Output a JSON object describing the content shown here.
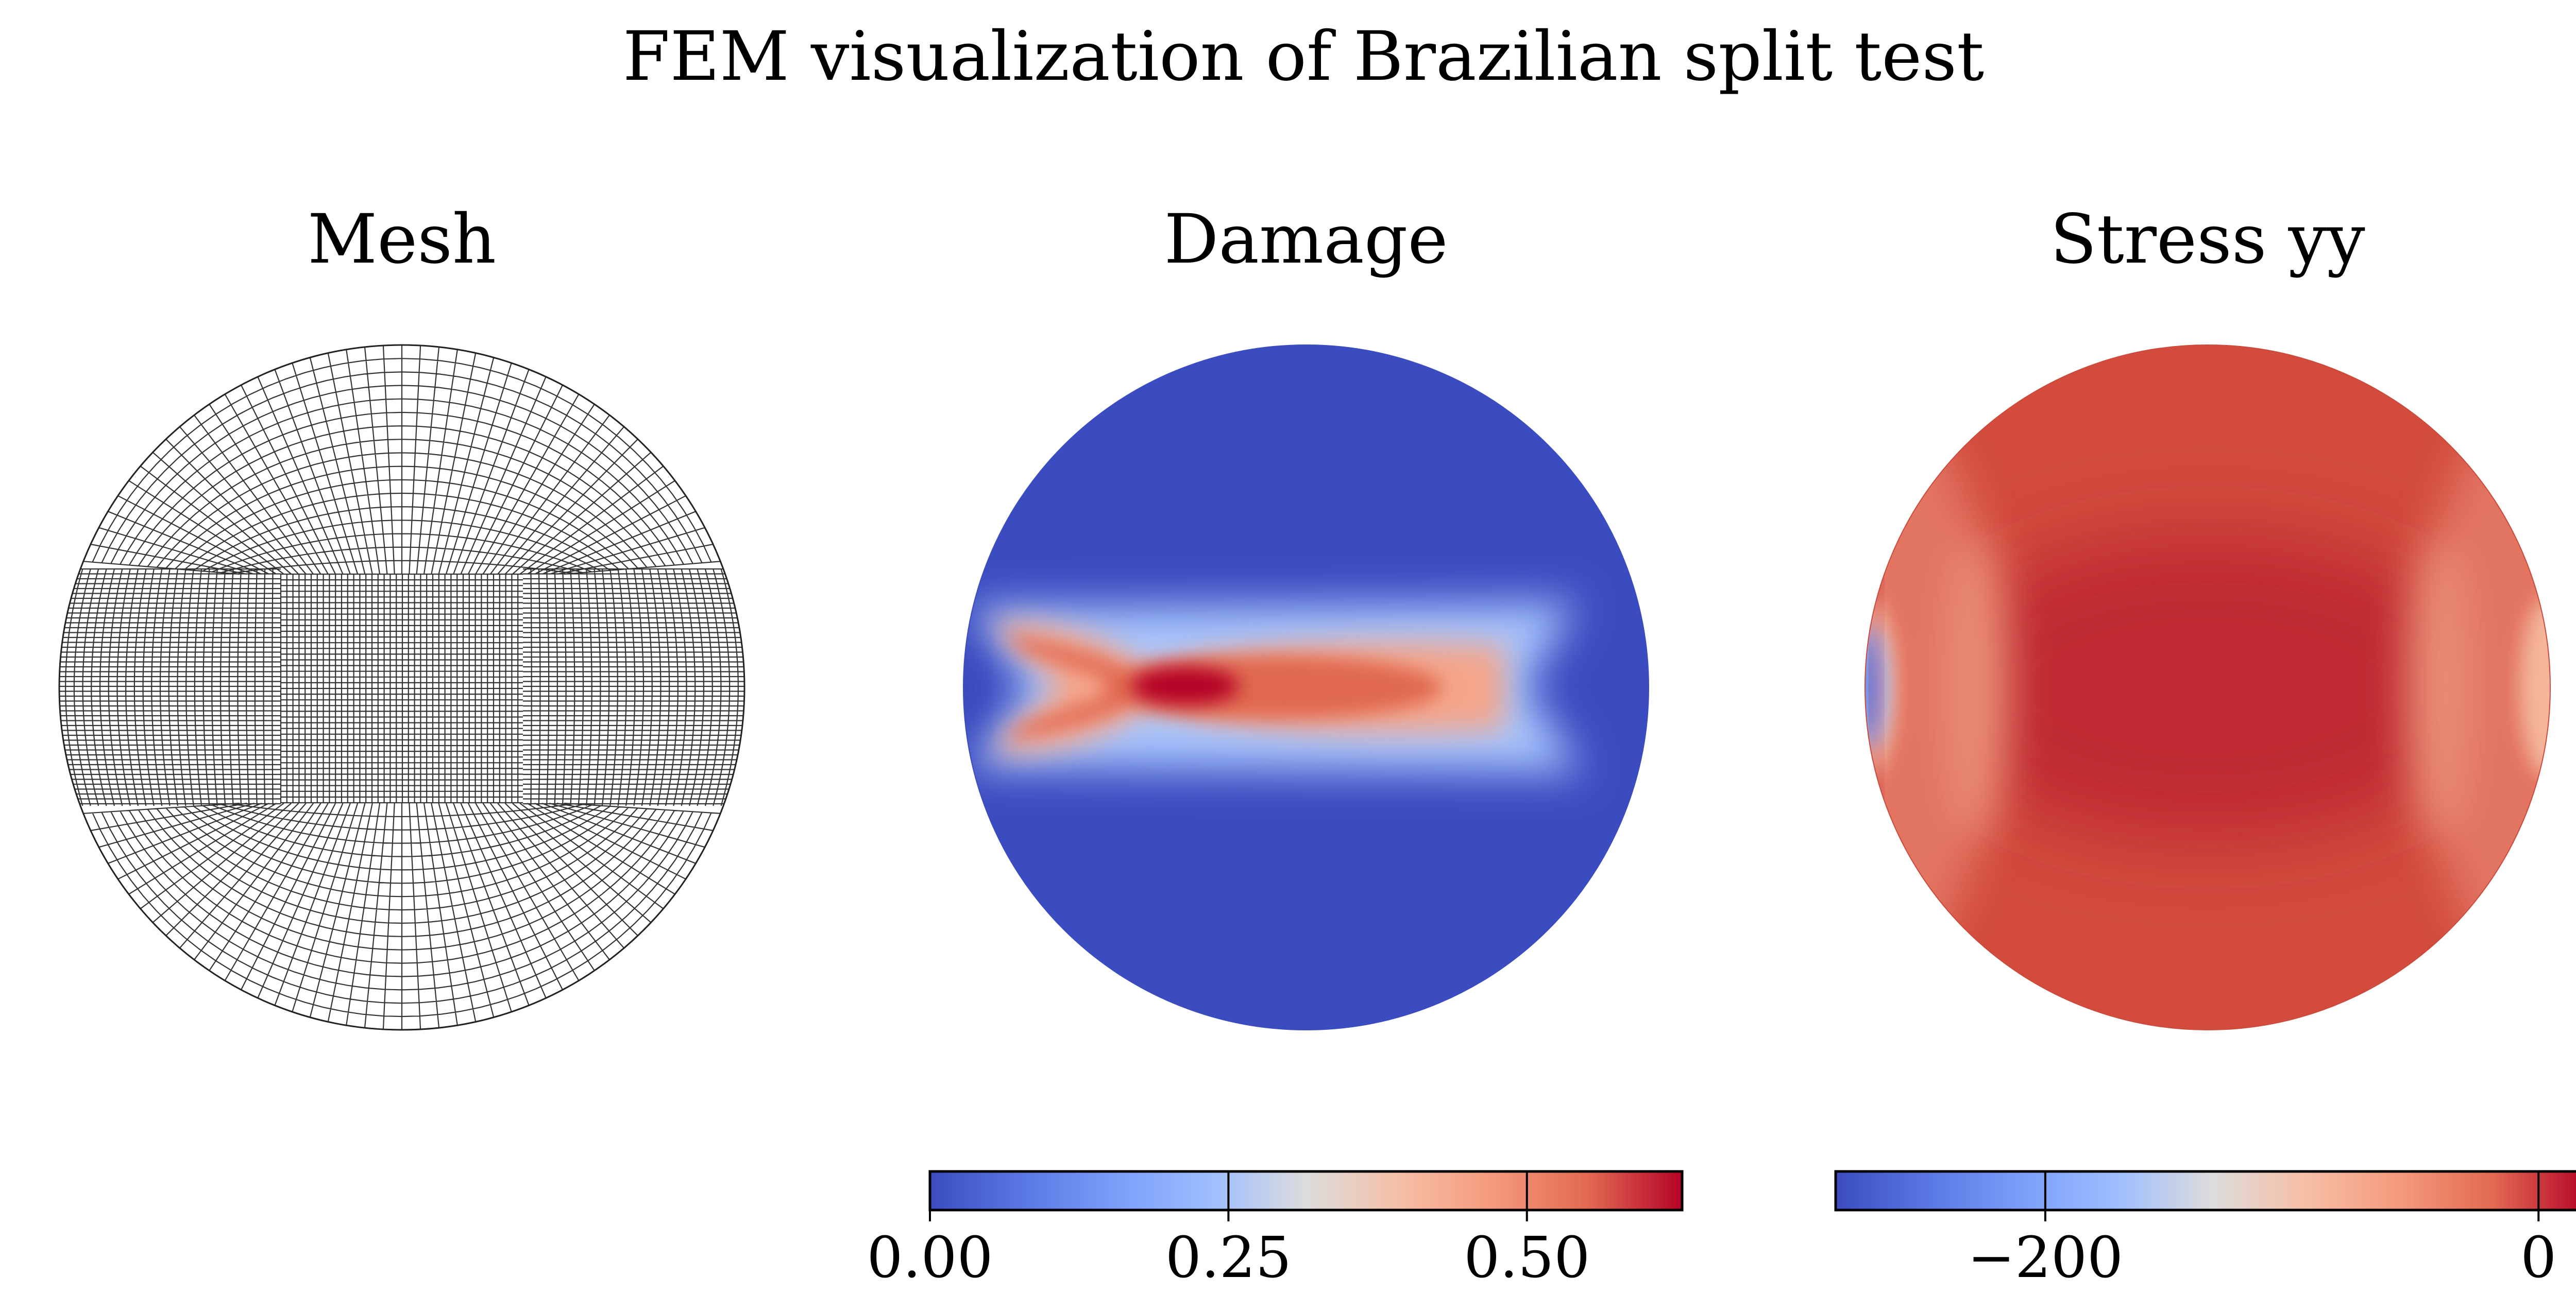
{
  "chart_data": {
    "title": "FEM visualization of Brazilian split test",
    "panels": [
      {
        "type": "mesh",
        "title": "Mesh"
      },
      {
        "type": "heatmap",
        "title": "Damage",
        "colormap": "coolwarm",
        "colorbar": {
          "range": [
            0.0,
            0.63
          ],
          "ticks": [
            0.0,
            0.25,
            0.5
          ],
          "tick_labels": [
            "0.00",
            "0.25",
            "0.50"
          ]
        }
      },
      {
        "type": "heatmap",
        "title": "Stress yy",
        "colormap": "coolwarm",
        "colorbar": {
          "range": [
            -285,
            20
          ],
          "ticks": [
            -200,
            0
          ],
          "tick_labels": [
            "−200",
            "0"
          ]
        }
      }
    ]
  }
}
